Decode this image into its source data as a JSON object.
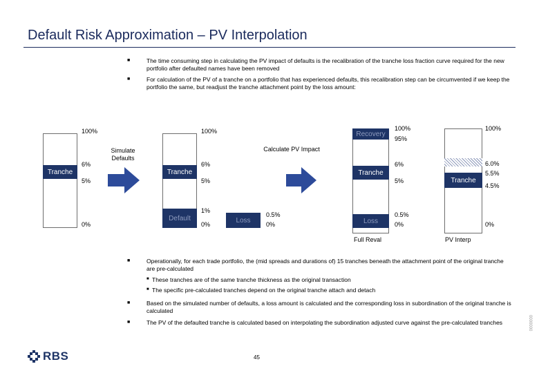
{
  "slide": {
    "title": "Default Risk Approximation – PV Interpolation",
    "page_number": "45",
    "side_code": "0000000"
  },
  "colors": {
    "navy": "#1e3466",
    "title": "#1a2a5c",
    "arrow": "#2d4b9a"
  },
  "intro_bullets": [
    "The time consuming step in calculating the PV impact of defaults is the recalibration of the tranche loss fraction curve required for the new portfolio after defaulted names have been removed",
    "For calculation of the PV of a tranche on a portfolio that has experienced defaults, this recalibration step can be circumvented if we keep the portfolio the same, but readjust the tranche attachment point by the loss amount:"
  ],
  "diagram": {
    "arrow1_label": "Simulate Defaults",
    "arrow2_label": "Calculate PV Impact",
    "bar1": {
      "top": "100%",
      "upper": "6%",
      "lower": "5%",
      "bottom": "0%",
      "tranche": "Tranche"
    },
    "bar2": {
      "top": "100%",
      "upper": "6%",
      "lower": "5%",
      "default_pct": "1%",
      "bottom": "0%",
      "tranche": "Tranche",
      "default": "Default"
    },
    "loss_box": {
      "label": "Loss",
      "upper": "0.5%",
      "lower": "0%"
    },
    "bar3": {
      "recovery": "Recovery",
      "top": "100%",
      "recovery_pct": "95%",
      "upper": "6%",
      "lower": "5%",
      "loss_upper": "0.5%",
      "loss_lower": "0%",
      "tranche": "Tranche",
      "loss": "Loss",
      "caption": "Full Reval"
    },
    "bar4": {
      "top": "100%",
      "upper": "6.0%",
      "mid": "5.5%",
      "lower": "4.5%",
      "bottom": "0%",
      "tranche": "Tranche",
      "caption": "PV Interp"
    }
  },
  "lower_bullets": {
    "b1": "Operationally, for each trade portfolio, the (mid spreads and durations of) 15 tranches beneath the attachment point of the original tranche are pre-calculated",
    "sub1": "These tranches are of the same tranche thickness as the original transaction",
    "sub2": "The specific pre-calculated tranches depend on the original tranche attach and detach",
    "b2": "Based on the simulated number of defaults, a loss amount is calculated and the corresponding loss in subordination of the original tranche is calculated",
    "b3": "The PV of the defaulted tranche is calculated based on interpolating the subordination adjusted curve against the pre-calculated tranches"
  },
  "logo": {
    "text": "RBS"
  }
}
